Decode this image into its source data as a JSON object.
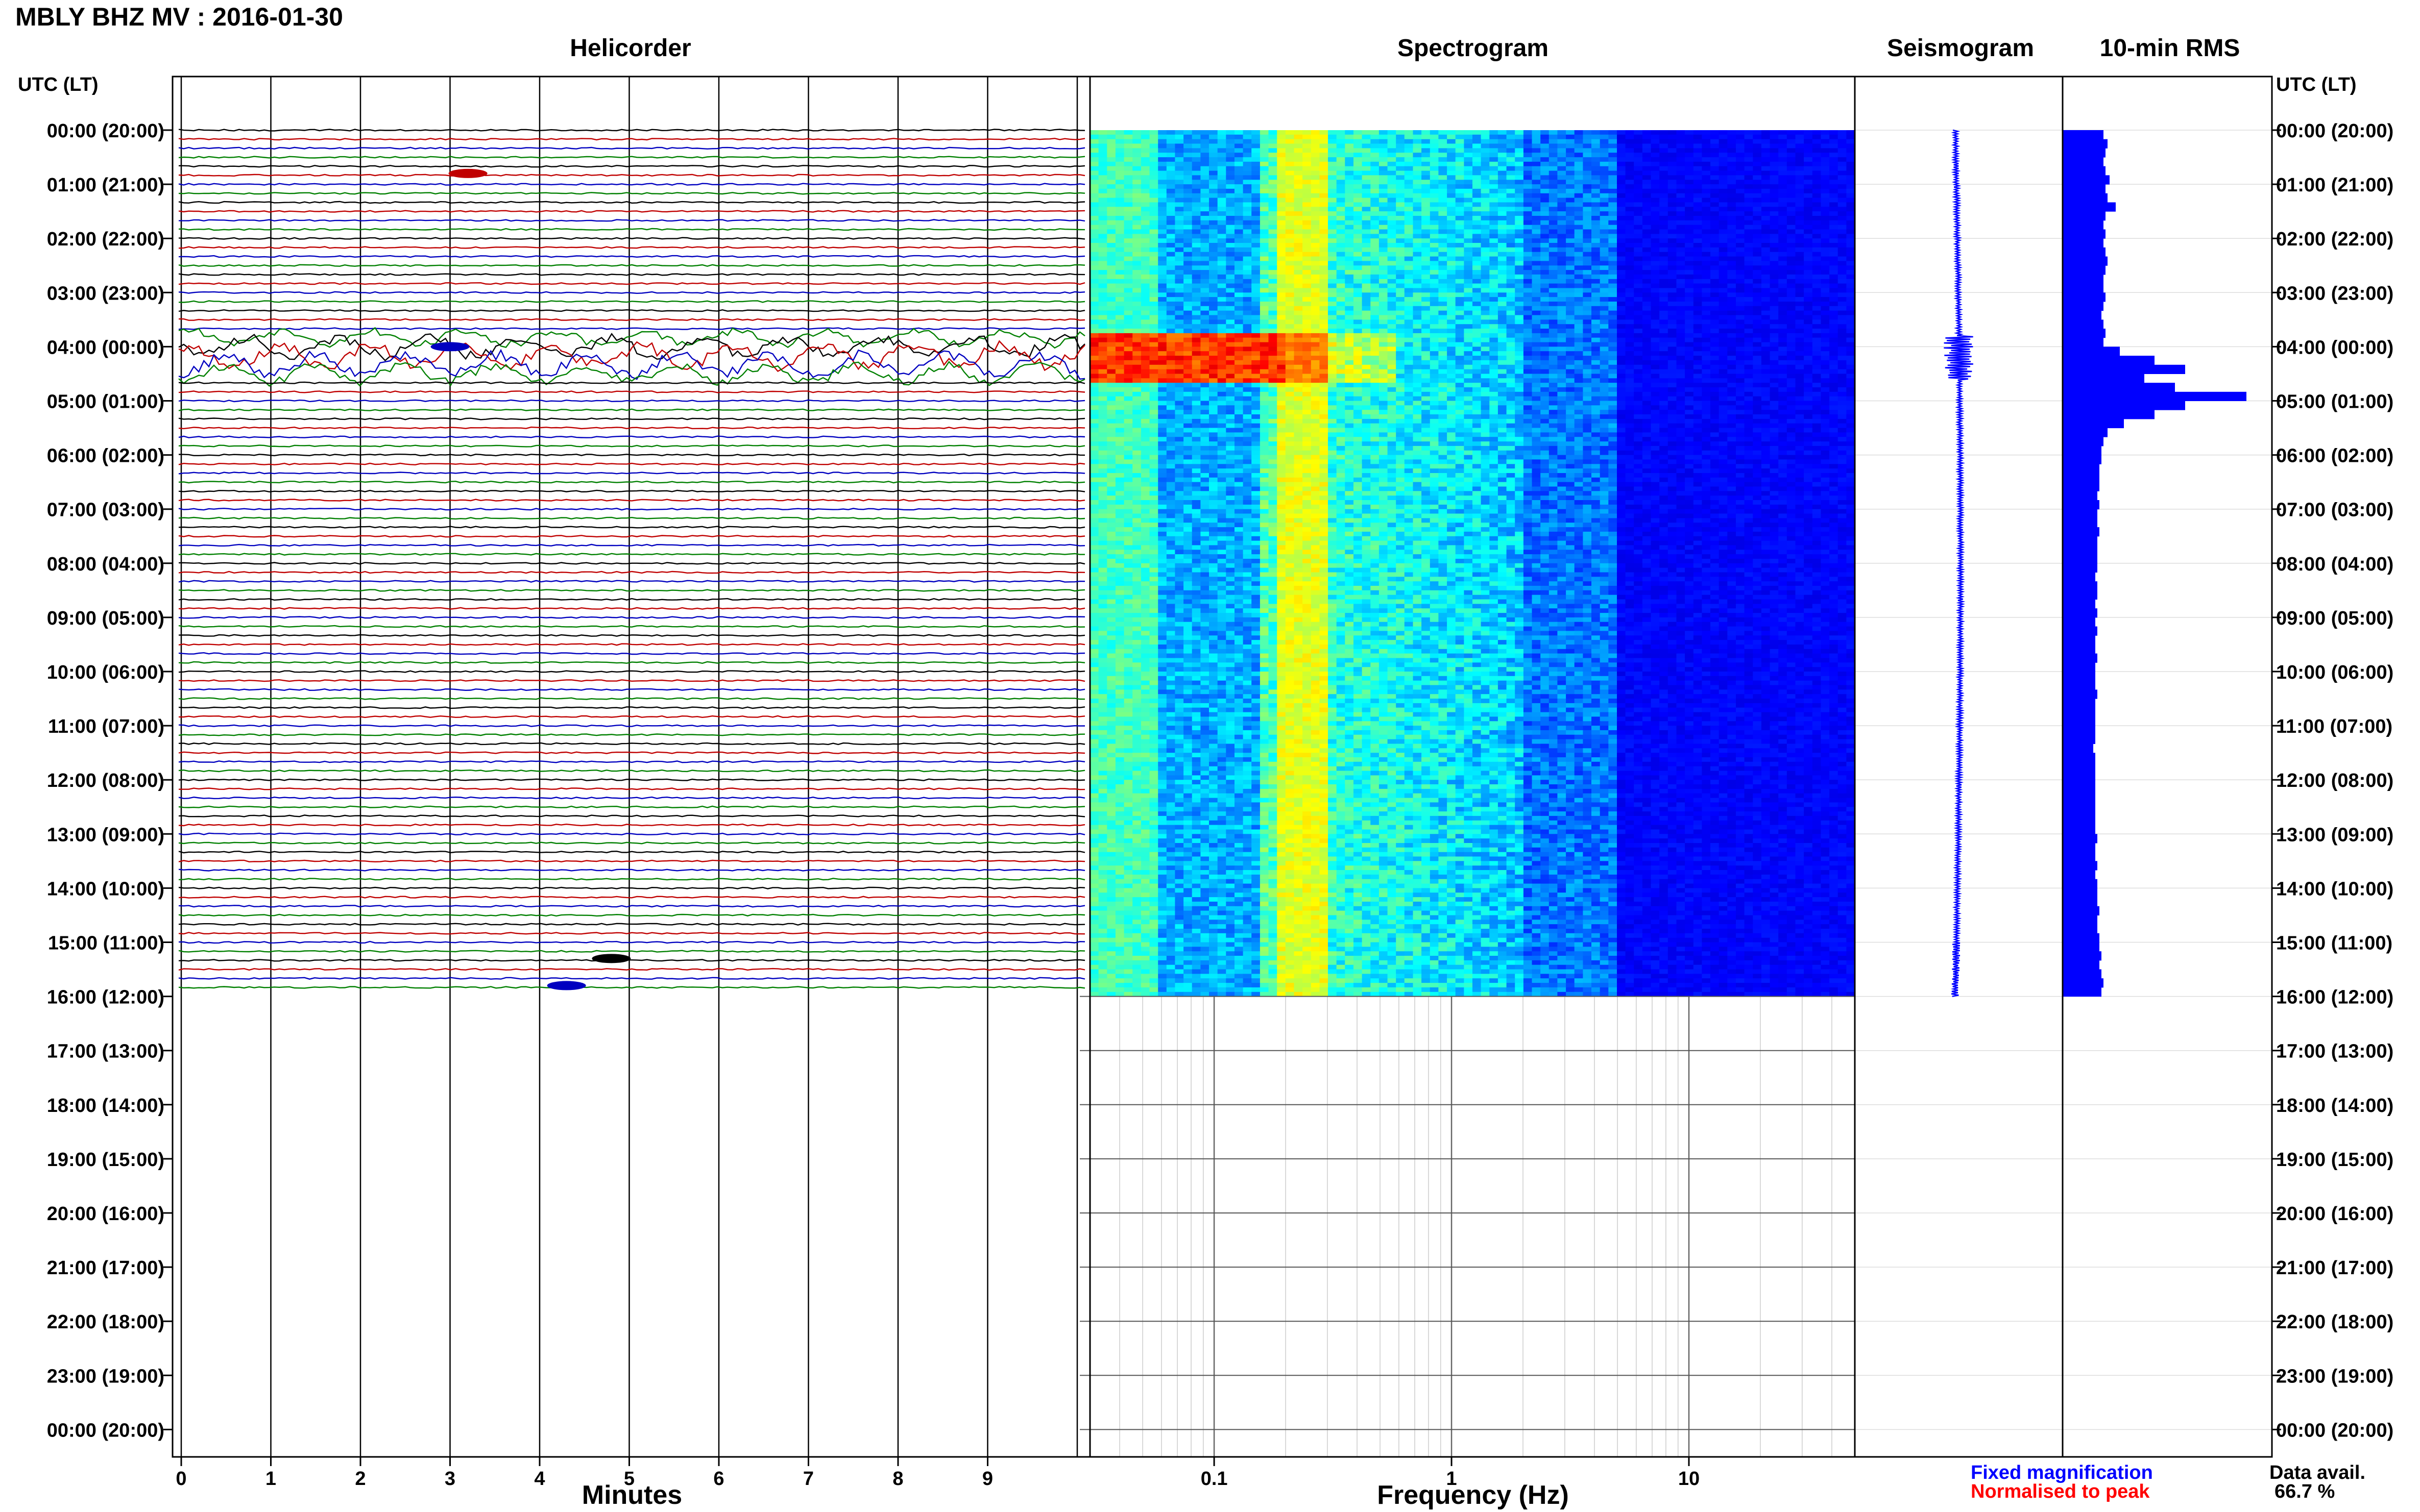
{
  "header": {
    "title": "MBLY BHZ MV : 2016-01-30",
    "time_axis_label_left": "UTC (LT)",
    "time_axis_label_right": "UTC (LT)"
  },
  "panels": {
    "helicorder": "Helicorder",
    "spectrogram": "Spectrogram",
    "seismogram": "Seismogram",
    "rms": "10-min RMS"
  },
  "legend": {
    "fixed": "Fixed magnification",
    "normalised": "Normalised to peak",
    "fixed_color": "#0000ff",
    "normalised_color": "#ff0000"
  },
  "data_avail": {
    "label": "Data avail.",
    "value": "66.7 %"
  },
  "chart_data": [
    {
      "type": "line",
      "name": "helicorder",
      "title": "Helicorder",
      "xlabel": "Minutes",
      "x_ticks": [
        "0",
        "1",
        "2",
        "3",
        "4",
        "5",
        "6",
        "7",
        "8",
        "9"
      ],
      "xlim": [
        0,
        10
      ],
      "time_ticks": [
        "00:00 (20:00)",
        "01:00 (21:00)",
        "02:00 (22:00)",
        "03:00 (23:00)",
        "04:00 (00:00)",
        "05:00 (01:00)",
        "06:00 (02:00)",
        "07:00 (03:00)",
        "08:00 (04:00)",
        "09:00 (05:00)",
        "10:00 (06:00)",
        "11:00 (07:00)",
        "12:00 (08:00)",
        "13:00 (09:00)",
        "14:00 (10:00)",
        "15:00 (11:00)",
        "16:00 (12:00)",
        "17:00 (13:00)",
        "18:00 (14:00)",
        "19:00 (15:00)",
        "20:00 (16:00)",
        "21:00 (17:00)",
        "22:00 (18:00)",
        "23:00 (19:00)",
        "00:00 (20:00)"
      ],
      "trace_colors": [
        "#000000",
        "#c00000",
        "#0000c0",
        "#008000"
      ],
      "traces_per_hour": 6,
      "data_end_hour": 16,
      "events": [
        {
          "hour": 0.8,
          "minute": 3.2,
          "color": "#c00000"
        },
        {
          "hour": 4.0,
          "minute": 3.0,
          "color": "#0000c0"
        },
        {
          "hour": 15.3,
          "minute": 4.8,
          "color": "#000000"
        },
        {
          "hour": 15.8,
          "minute": 4.3,
          "color": "#0000c0"
        }
      ],
      "quake_hours": [
        3.8,
        4.6
      ]
    },
    {
      "type": "heatmap",
      "name": "spectrogram",
      "title": "Spectrogram",
      "xlabel": "Frequency (Hz)",
      "x_scale": "log",
      "xlim": [
        0.03,
        50
      ],
      "x_ticks": [
        "0.1",
        "1",
        "10"
      ],
      "data_end_hour": 16,
      "peak_band_hz": [
        0.18,
        0.3
      ],
      "quake_hours": [
        3.8,
        4.6
      ]
    },
    {
      "type": "line",
      "name": "seismogram",
      "title": "Seismogram",
      "data_end_hour": 16,
      "quake_hours": [
        3.8,
        4.6
      ]
    },
    {
      "type": "bar",
      "name": "rms",
      "title": "10-min RMS",
      "bin_minutes": 10,
      "data_end_hour": 16,
      "values": [
        20,
        22,
        21,
        20,
        21,
        23,
        21,
        22,
        26,
        21,
        20,
        21,
        20,
        21,
        22,
        21,
        20,
        20,
        21,
        20,
        19,
        20,
        21,
        20,
        28,
        45,
        60,
        40,
        55,
        90,
        60,
        45,
        30,
        22,
        20,
        19,
        19,
        18,
        18,
        18,
        17,
        18,
        17,
        17,
        18,
        17,
        17,
        17,
        17,
        16,
        17,
        17,
        16,
        17,
        16,
        17,
        16,
        16,
        17,
        16,
        16,
        16,
        17,
        16,
        16,
        16,
        16,
        16,
        15,
        16,
        16,
        16,
        16,
        16,
        16,
        16,
        16,
        16,
        17,
        16,
        16,
        17,
        16,
        17,
        17,
        17,
        18,
        17,
        17,
        18,
        18,
        19,
        18,
        19,
        20,
        19
      ],
      "color": "#0000ff"
    }
  ]
}
